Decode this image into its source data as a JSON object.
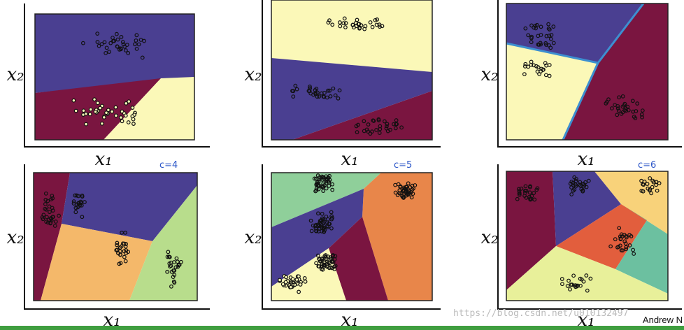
{
  "panels": [
    {
      "x_label": "x₁",
      "y_label": "x₂"
    },
    {
      "x_label": "x₁",
      "y_label": "x₂"
    },
    {
      "x_label": "x₁",
      "y_label": "x₂"
    },
    {
      "x_label": "x₁",
      "y_label": "x₂",
      "annotation": "c=4"
    },
    {
      "x_label": "x₁",
      "y_label": "x₂",
      "annotation": "c=5"
    },
    {
      "x_label": "x₁",
      "y_label": "x₂",
      "annotation": "c=6"
    }
  ],
  "watermark": "https://blog.csdn.net/u010132497",
  "credit": "Andrew N"
}
